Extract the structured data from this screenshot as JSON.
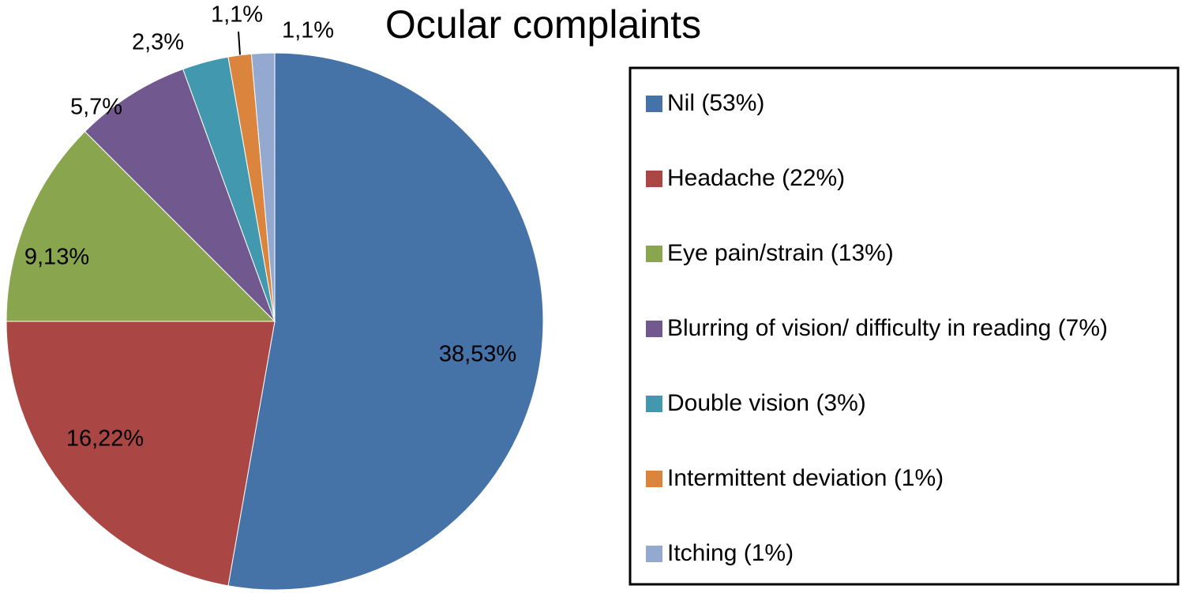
{
  "chart_data": {
    "type": "pie",
    "title": "Ocular complaints",
    "categories": [
      "Nil (53%)",
      "Headache (22%)",
      "Eye pain/strain (13%)",
      "Blurring of vision/ difficulty in reading (7%)",
      "Double vision (3%)",
      "Intermittent deviation (1%)",
      "Itching (1%)"
    ],
    "values": [
      38,
      16,
      9,
      5,
      2,
      1,
      1
    ],
    "value_labels": [
      "38,53%",
      "16,22%",
      "9,13%",
      "5,7%",
      "2,3%",
      "1,1%",
      "1,1%"
    ],
    "colors": [
      "#4572a7",
      "#aa4643",
      "#89a54e",
      "#71588f",
      "#4198af",
      "#db843d",
      "#93a9cf"
    ],
    "legend": "right"
  }
}
